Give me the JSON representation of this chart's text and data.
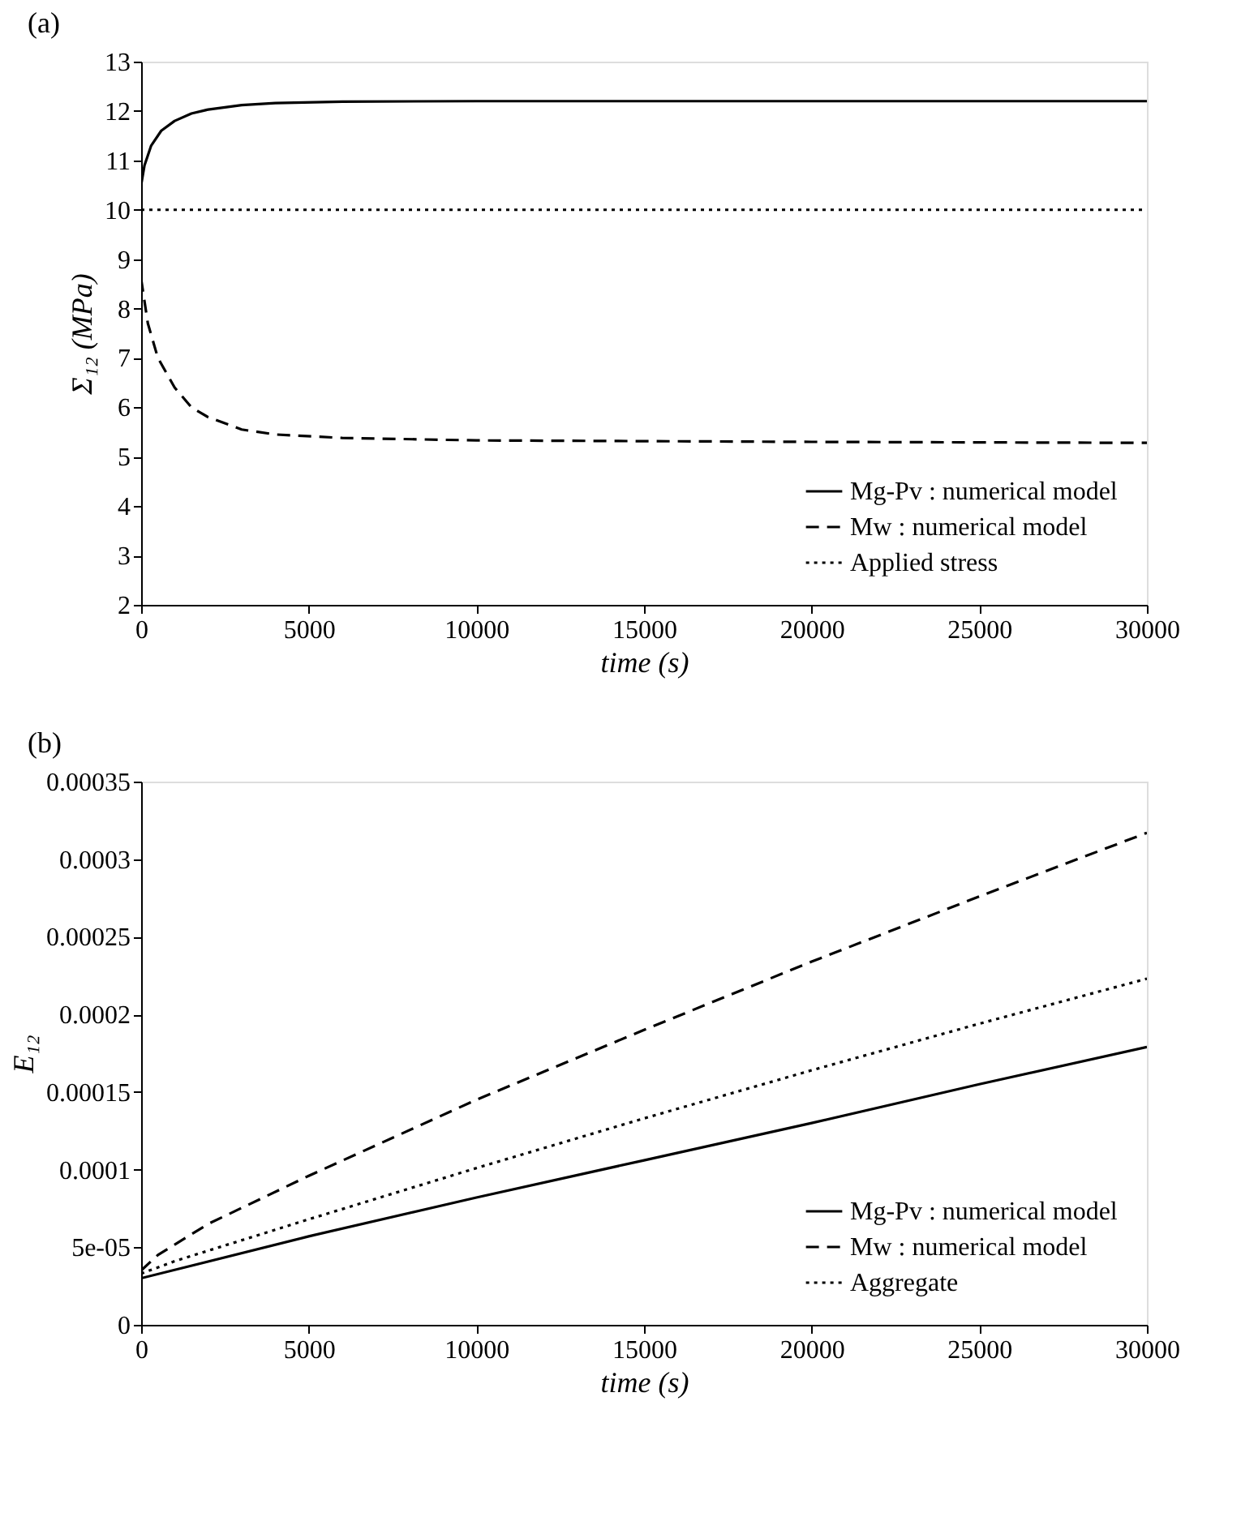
{
  "chart_data": [
    {
      "type": "line",
      "title": "(a)",
      "xlabel": "time (s)",
      "ylabel": "Σ₁₂ (MPa)",
      "xlim": [
        0,
        30000
      ],
      "ylim": [
        2,
        13
      ],
      "xticks": [
        0,
        5000,
        10000,
        15000,
        20000,
        25000,
        30000
      ],
      "yticks": [
        2,
        3,
        4,
        5,
        6,
        7,
        8,
        9,
        10,
        11,
        12,
        13
      ],
      "grid": false,
      "legend": "bottom right",
      "series": [
        {
          "name": "Mg-Pv : numerical model",
          "color": "#000000",
          "line_style": "solid",
          "x": [
            0,
            100,
            300,
            600,
            1000,
            1500,
            2000,
            3000,
            4000,
            6000,
            10000,
            20000,
            30000
          ],
          "values": [
            10.5,
            10.9,
            11.3,
            11.6,
            11.8,
            11.95,
            12.03,
            12.12,
            12.16,
            12.19,
            12.2,
            12.2,
            12.2
          ]
        },
        {
          "name": "Mw : numerical model",
          "color": "#000000",
          "line_style": "dashed",
          "x": [
            0,
            200,
            500,
            1000,
            1500,
            2000,
            3000,
            4000,
            6000,
            10000,
            20000,
            30000
          ],
          "values": [
            8.6,
            7.7,
            7.0,
            6.4,
            6.0,
            5.8,
            5.55,
            5.45,
            5.38,
            5.33,
            5.3,
            5.28
          ]
        },
        {
          "name": "Applied stress",
          "color": "#000000",
          "line_style": "dotted",
          "x": [
            0,
            30000
          ],
          "values": [
            10,
            10
          ]
        }
      ]
    },
    {
      "type": "line",
      "title": "(b)",
      "xlabel": "time (s)",
      "ylabel": "E₁₂",
      "xlim": [
        0,
        30000
      ],
      "ylim": [
        0,
        0.00035
      ],
      "xticks": [
        0,
        5000,
        10000,
        15000,
        20000,
        25000,
        30000
      ],
      "yticks": [
        0,
        {
          "value": 5e-05,
          "label": "5e-05"
        },
        0.0001,
        0.00015,
        0.0002,
        0.00025,
        0.0003,
        0.00035
      ],
      "grid": false,
      "legend": "bottom right",
      "series": [
        {
          "name": "Mg-Pv : numerical model",
          "color": "#000000",
          "line_style": "solid",
          "x": [
            0,
            5000,
            10000,
            15000,
            20000,
            25000,
            30000
          ],
          "values": [
            3e-05,
            5.7e-05,
            8.2e-05,
            0.000106,
            0.00013,
            0.000155,
            0.000179
          ]
        },
        {
          "name": "Mw : numerical model",
          "color": "#000000",
          "line_style": "dashed",
          "x": [
            0,
            500,
            2000,
            5000,
            10000,
            15000,
            20000,
            25000,
            30000
          ],
          "values": [
            3.5e-05,
            4.5e-05,
            6.5e-05,
            9.6e-05,
            0.000145,
            0.00019,
            0.000234,
            0.000276,
            0.000317
          ]
        },
        {
          "name": "Aggregate",
          "color": "#000000",
          "line_style": "dotted",
          "x": [
            0,
            1000,
            5000,
            10000,
            15000,
            20000,
            25000,
            30000
          ],
          "values": [
            3.3e-05,
            4.1e-05,
            6.8e-05,
            0.000101,
            0.000133,
            0.000164,
            0.000194,
            0.000223
          ]
        }
      ]
    }
  ]
}
